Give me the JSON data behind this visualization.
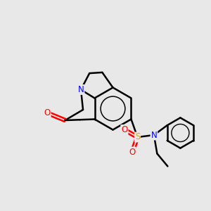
{
  "background_color": "#e8e8e8",
  "atom_colors": {
    "N": "#0000ff",
    "O": "#ff0000",
    "S": "#ccaa00"
  },
  "bond_color": "#000000",
  "bond_width": 1.8,
  "figsize": [
    3.0,
    3.0
  ],
  "dpi": 100
}
